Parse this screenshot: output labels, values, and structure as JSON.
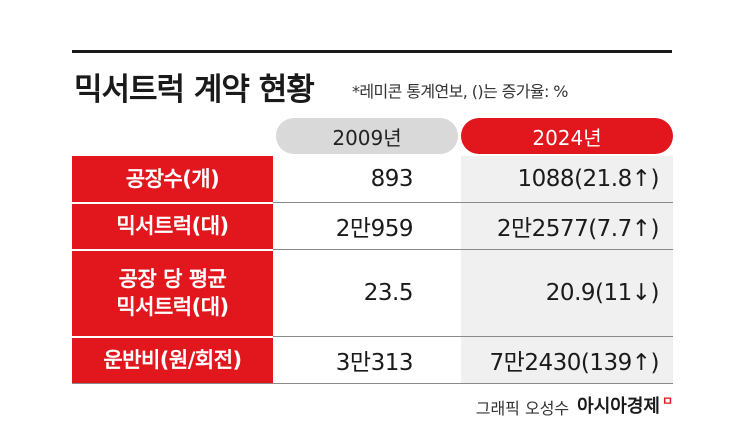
{
  "title": "믹서트럭 계약 현황",
  "subtitle": "*레미콘 통계연보, ()는 증가율: %",
  "columns": [
    "2009년",
    "2024년"
  ],
  "rows": [
    {
      "label": "공장수(개)",
      "v2009": "893",
      "v2024": "1088(21.8↑)"
    },
    {
      "label": "믹서트럭(대)",
      "v2009": "2만959",
      "v2024": "2만2577(7.7↑)"
    },
    {
      "label": "공장 당 평균\n믹서트럭(대)",
      "v2009": "23.5",
      "v2024": "20.9(11↓)"
    },
    {
      "label": "운반비(원/회전)",
      "v2009": "3만313",
      "v2024": "7만2430(139↑)"
    }
  ],
  "credit": {
    "byline": "그래픽 오성수",
    "brand": "아시아경제",
    "brand_mark": "ㅁ"
  },
  "colors": {
    "accent_red": "#e2161d",
    "header_gray": "#d9d9d9",
    "cell_gray": "#f0f0f0"
  }
}
